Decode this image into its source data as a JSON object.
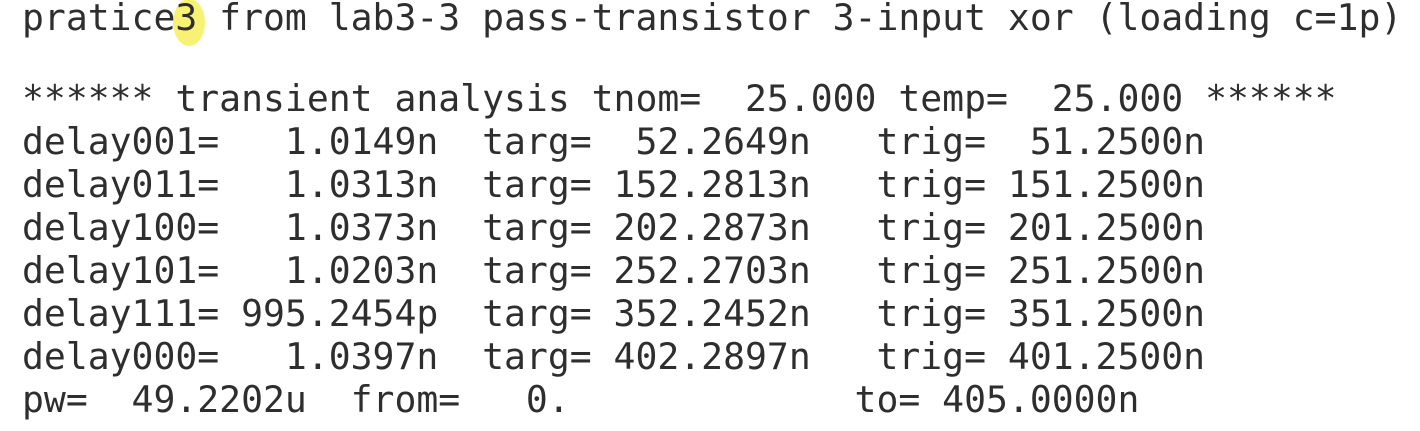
{
  "terminal": {
    "title_line": "pratice3 from lab3-3 pass-transistor 3-input xor (loading c=1p)",
    "analysis_header": "****** transient analysis tnom=  25.000 temp=  25.000 ******",
    "results": [
      "delay001=   1.0149n  targ=  52.2649n   trig=  51.2500n",
      "delay011=   1.0313n  targ= 152.2813n   trig= 151.2500n",
      "delay100=   1.0373n  targ= 202.2873n   trig= 201.2500n",
      "delay101=   1.0203n  targ= 252.2703n   trig= 251.2500n",
      "delay111= 995.2454p  targ= 352.2452n   trig= 351.2500n",
      "delay000=   1.0397n  targ= 402.2897n   trig= 401.2500n",
      "pw=  49.2202u  from=   0.             to= 405.0000n"
    ]
  },
  "colors": {
    "background": "#ffffff",
    "text": "#2e2e2e",
    "cursor_highlight": "#f6ef55"
  }
}
